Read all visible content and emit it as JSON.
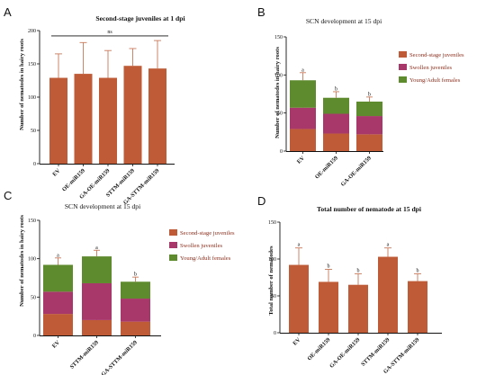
{
  "colors": {
    "j2": "#bf5b36",
    "swollen": "#a8386a",
    "adult": "#5e8b2d",
    "err": "#c9795a",
    "axis": "#111111",
    "legend_text": "#8b2e1c"
  },
  "panels": {
    "A": {
      "letter": "A"
    },
    "B": {
      "letter": "B"
    },
    "C": {
      "letter": "C"
    },
    "D": {
      "letter": "D"
    }
  },
  "chart_data": [
    {
      "id": "A",
      "type": "bar",
      "title": "Second-stage juveniles at 1 dpi",
      "ylabel": "Number of nematodes in hairy roots",
      "categories": [
        "EV",
        "OE-miR159",
        "GA-OE-miR159",
        "STTM-miR159",
        "GA-STTM-miR159"
      ],
      "values": [
        129,
        135,
        129,
        147,
        143
      ],
      "errors": [
        36,
        47,
        41,
        26,
        42
      ],
      "ylim": [
        0,
        200
      ],
      "yticks": [
        0,
        50,
        100,
        150,
        200
      ],
      "annotation": "ns",
      "grid": false
    },
    {
      "id": "B",
      "type": "bar",
      "stacked": true,
      "title": "SCN development at 15 dpi",
      "ylabel": "Number of nematodes in hairy roots",
      "categories": [
        "EV",
        "OE-miR159",
        "GA-OE-miR159"
      ],
      "series": [
        {
          "name": "Second-stage juveniles",
          "values": [
            29,
            23,
            22
          ],
          "errors": [
            8,
            6,
            6
          ],
          "sig": [
            "a",
            "b",
            "b"
          ]
        },
        {
          "name": "Swollen juveniles",
          "values": [
            28,
            26,
            24
          ],
          "errors": [
            8,
            6,
            6
          ],
          "sig": [
            "a",
            "b",
            "b"
          ]
        },
        {
          "name": "Young/Adult females",
          "values": [
            36,
            21,
            19
          ],
          "errors": [
            10,
            8,
            6
          ],
          "sig": [
            "a",
            "b",
            "b"
          ]
        }
      ],
      "ylim": [
        0,
        150
      ],
      "yticks": [
        0,
        50,
        100,
        150
      ],
      "legend": "right",
      "grid": false
    },
    {
      "id": "C",
      "type": "bar",
      "stacked": true,
      "title": "SCN development at 15 dpi",
      "ylabel": "Number of nematodes in hairy roots",
      "categories": [
        "EV",
        "STTM-miR159",
        "GA-STTM-miR159"
      ],
      "series": [
        {
          "name": "Second-stage juveniles",
          "values": [
            28,
            20,
            18
          ],
          "errors": [
            7,
            5,
            5
          ],
          "sig": [
            "a",
            "a",
            "a"
          ]
        },
        {
          "name": "Swollen juveniles",
          "values": [
            29,
            48,
            30
          ],
          "errors": [
            7,
            8,
            6
          ],
          "sig": [
            "b",
            "a",
            "b"
          ]
        },
        {
          "name": "Young/Adult females",
          "values": [
            35,
            35,
            22
          ],
          "errors": [
            9,
            8,
            6
          ],
          "sig": [
            "a",
            "a",
            "b"
          ]
        }
      ],
      "ylim": [
        0,
        150
      ],
      "yticks": [
        0,
        50,
        100,
        150
      ],
      "legend": "right",
      "grid": false
    },
    {
      "id": "D",
      "type": "bar",
      "title": "Total number of nematode at 15 dpi",
      "ylabel": "Total number of nematodes",
      "categories": [
        "EV",
        "OE-miR159",
        "GA-OE-miR159",
        "STTM-miR159",
        "GA-STTM-miR159"
      ],
      "values": [
        92,
        69,
        65,
        103,
        70
      ],
      "errors": [
        23,
        17,
        15,
        12,
        10
      ],
      "sig": [
        "a",
        "b",
        "b",
        "a",
        "b"
      ],
      "ylim": [
        0,
        150
      ],
      "yticks": [
        0,
        50,
        100,
        150
      ],
      "grid": false
    }
  ]
}
